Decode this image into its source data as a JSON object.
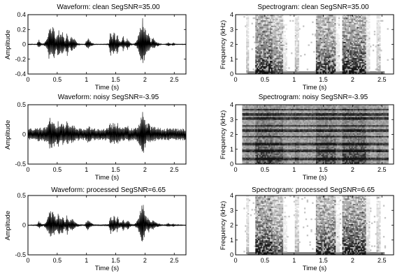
{
  "chart_data": [
    {
      "type": "line",
      "title": "Waveform: clean  SegSNR=35.00",
      "xlabel": "Time (s)",
      "ylabel": "Amplitude",
      "xlim": [
        0,
        2.7
      ],
      "ylim": [
        -0.4,
        0.4
      ],
      "xticks": [
        0,
        0.5,
        1,
        1.5,
        2,
        2.5
      ],
      "xtick_labels": [
        "0",
        "0.5",
        "1",
        "1.5",
        "2",
        "2.5"
      ],
      "yticks": [
        -0.4,
        -0.2,
        0,
        0.2,
        0.4
      ],
      "ytick_labels": [
        "-0.4",
        "-0.2",
        "0",
        "0.2",
        "0.4"
      ],
      "color": "#000000",
      "envelope": {
        "t": [
          0,
          0.15,
          0.19,
          0.23,
          0.27,
          0.33,
          0.37,
          0.4,
          0.44,
          0.48,
          0.52,
          0.56,
          0.6,
          0.63,
          0.67,
          0.7,
          0.74,
          0.79,
          0.84,
          0.88,
          0.92,
          0.97,
          1.02,
          1.07,
          1.13,
          1.2,
          1.3,
          1.38,
          1.41,
          1.44,
          1.47,
          1.5,
          1.53,
          1.56,
          1.6,
          1.63,
          1.66,
          1.7,
          1.75,
          1.8,
          1.85,
          1.88,
          1.92,
          1.96,
          1.99,
          2.03,
          2.06,
          2.1,
          2.14,
          2.18,
          2.22,
          2.26,
          2.3,
          2.35,
          2.4,
          2.45,
          2.48,
          2.52,
          2.58,
          2.7
        ],
        "upper": [
          0.005,
          0.005,
          0.07,
          0.01,
          0.01,
          0.09,
          0.3,
          0.22,
          0.27,
          0.08,
          0.21,
          0.14,
          0.17,
          0.04,
          0.21,
          0.05,
          0.11,
          0.09,
          0.02,
          0.01,
          0.005,
          0.005,
          0.1,
          0.04,
          0.005,
          0.005,
          0.005,
          0.01,
          0.19,
          0.09,
          0.2,
          0.08,
          0.16,
          0.05,
          0.04,
          0.13,
          0.04,
          0.1,
          0.02,
          0.005,
          0.04,
          0.1,
          0.25,
          0.38,
          0.26,
          0.12,
          0.16,
          0.05,
          0.1,
          0.04,
          0.03,
          0.01,
          0.005,
          0.005,
          0.03,
          0.005,
          0.03,
          0.005,
          0.005,
          0.005
        ],
        "lower": [
          -0.005,
          -0.005,
          -0.06,
          -0.01,
          -0.01,
          -0.08,
          -0.25,
          -0.18,
          -0.22,
          -0.07,
          -0.18,
          -0.12,
          -0.15,
          -0.04,
          -0.18,
          -0.04,
          -0.09,
          -0.08,
          -0.02,
          -0.01,
          -0.005,
          -0.005,
          -0.08,
          -0.03,
          -0.005,
          -0.005,
          -0.005,
          -0.01,
          -0.16,
          -0.08,
          -0.17,
          -0.07,
          -0.14,
          -0.04,
          -0.03,
          -0.11,
          -0.03,
          -0.08,
          -0.02,
          -0.005,
          -0.03,
          -0.08,
          -0.22,
          -0.35,
          -0.22,
          -0.1,
          -0.14,
          -0.04,
          -0.08,
          -0.03,
          -0.03,
          -0.01,
          -0.005,
          -0.005,
          -0.03,
          -0.005,
          -0.03,
          -0.005,
          -0.005,
          -0.005
        ]
      }
    },
    {
      "type": "heatmap",
      "title": "Spectrogram: clean  SegSNR=35.00",
      "xlabel": "Time (s)",
      "ylabel": "Frequency (kHz)",
      "xlim": [
        0,
        2.7
      ],
      "ylim": [
        0,
        4
      ],
      "xticks": [
        0,
        0.5,
        1,
        1.5,
        2,
        2.5
      ],
      "xtick_labels": [
        "0",
        "0.5",
        "1",
        "1.5",
        "2",
        "2.5"
      ],
      "yticks": [
        0,
        1,
        2,
        3,
        4
      ],
      "ytick_labels": [
        "0",
        "1",
        "2",
        "3",
        "4"
      ],
      "colormap": "gray-inverted",
      "active_segments": [
        [
          0.19,
          0.23,
          0.3
        ],
        [
          0.33,
          0.63,
          1.0
        ],
        [
          0.63,
          0.8,
          0.7
        ],
        [
          0.8,
          0.88,
          0.15
        ],
        [
          1.02,
          1.08,
          0.35
        ],
        [
          1.38,
          1.7,
          0.9
        ],
        [
          1.7,
          1.78,
          0.15
        ],
        [
          1.83,
          2.22,
          1.0
        ],
        [
          2.22,
          2.3,
          0.2
        ],
        [
          2.4,
          2.48,
          0.3
        ]
      ]
    },
    {
      "type": "line",
      "title": "Waveform: noisy  SegSNR=-3.95",
      "xlabel": "Time (s)",
      "ylabel": "Amplitude",
      "xlim": [
        0,
        2.7
      ],
      "ylim": [
        -0.5,
        0.5
      ],
      "xticks": [
        0,
        0.5,
        1,
        1.5,
        2,
        2.5
      ],
      "xtick_labels": [
        "0",
        "0.5",
        "1",
        "1.5",
        "2",
        "2.5"
      ],
      "yticks": [
        -0.5,
        0,
        0.5
      ],
      "ytick_labels": [
        "-0.5",
        "0",
        "0.5"
      ],
      "color": "#000000",
      "envelope": {
        "t": [
          0,
          0.15,
          0.19,
          0.23,
          0.27,
          0.33,
          0.37,
          0.4,
          0.44,
          0.48,
          0.52,
          0.56,
          0.6,
          0.63,
          0.67,
          0.7,
          0.74,
          0.79,
          0.84,
          0.88,
          0.92,
          0.97,
          1.02,
          1.07,
          1.13,
          1.2,
          1.3,
          1.38,
          1.41,
          1.44,
          1.47,
          1.5,
          1.53,
          1.56,
          1.6,
          1.63,
          1.66,
          1.7,
          1.75,
          1.8,
          1.85,
          1.88,
          1.92,
          1.96,
          1.99,
          2.03,
          2.06,
          2.1,
          2.14,
          2.18,
          2.22,
          2.26,
          2.3,
          2.35,
          2.4,
          2.45,
          2.48,
          2.52,
          2.58,
          2.7
        ],
        "upper": [
          0.1,
          0.11,
          0.15,
          0.12,
          0.12,
          0.16,
          0.32,
          0.25,
          0.3,
          0.15,
          0.24,
          0.18,
          0.21,
          0.12,
          0.24,
          0.13,
          0.16,
          0.15,
          0.11,
          0.11,
          0.1,
          0.1,
          0.15,
          0.12,
          0.1,
          0.1,
          0.1,
          0.11,
          0.22,
          0.15,
          0.23,
          0.14,
          0.2,
          0.12,
          0.12,
          0.18,
          0.12,
          0.15,
          0.11,
          0.1,
          0.12,
          0.16,
          0.28,
          0.44,
          0.3,
          0.17,
          0.2,
          0.13,
          0.15,
          0.12,
          0.12,
          0.11,
          0.1,
          0.1,
          0.12,
          0.1,
          0.12,
          0.1,
          0.1,
          0.1
        ],
        "lower": [
          -0.1,
          -0.11,
          -0.14,
          -0.12,
          -0.12,
          -0.15,
          -0.28,
          -0.22,
          -0.26,
          -0.14,
          -0.21,
          -0.16,
          -0.19,
          -0.12,
          -0.21,
          -0.12,
          -0.15,
          -0.14,
          -0.11,
          -0.11,
          -0.1,
          -0.1,
          -0.14,
          -0.12,
          -0.1,
          -0.1,
          -0.1,
          -0.11,
          -0.2,
          -0.14,
          -0.2,
          -0.13,
          -0.18,
          -0.12,
          -0.11,
          -0.16,
          -0.11,
          -0.14,
          -0.11,
          -0.1,
          -0.11,
          -0.14,
          -0.25,
          -0.38,
          -0.26,
          -0.15,
          -0.18,
          -0.12,
          -0.14,
          -0.11,
          -0.11,
          -0.11,
          -0.1,
          -0.1,
          -0.11,
          -0.1,
          -0.11,
          -0.1,
          -0.1,
          -0.1
        ]
      }
    },
    {
      "type": "heatmap",
      "title": "Spectrogram: noisy  SegSNR=-3.95",
      "xlabel": "Time (s)",
      "ylabel": "Frequency (kHz)",
      "xlim": [
        0,
        2.7
      ],
      "ylim": [
        0,
        4
      ],
      "xticks": [
        0,
        0.5,
        1,
        1.5,
        2,
        2.5
      ],
      "xtick_labels": [
        "0",
        "0.5",
        "1",
        "1.5",
        "2",
        "2.5"
      ],
      "yticks": [
        0,
        1,
        2,
        3,
        4
      ],
      "ytick_labels": [
        "0",
        "1",
        "2",
        "3",
        "4"
      ],
      "colormap": "gray-inverted",
      "tonal_noise_khz": [
        0.35,
        0.9,
        1.35,
        1.85,
        2.25,
        2.6,
        3.1,
        3.35,
        3.7
      ]
    },
    {
      "type": "line",
      "title": "Waveform: processed  SegSNR=6.65",
      "xlabel": "Time (s)",
      "ylabel": "Amplitude",
      "xlim": [
        0,
        2.7
      ],
      "ylim": [
        -0.5,
        0.5
      ],
      "xticks": [
        0,
        0.5,
        1,
        1.5,
        2,
        2.5
      ],
      "xtick_labels": [
        "0",
        "0.5",
        "1",
        "1.5",
        "2",
        "2.5"
      ],
      "yticks": [
        -0.5,
        0,
        0.5
      ],
      "ytick_labels": [
        "-0.5",
        "0",
        "0.5"
      ],
      "color": "#000000",
      "envelope": {
        "t": [
          0,
          0.15,
          0.19,
          0.23,
          0.27,
          0.33,
          0.37,
          0.4,
          0.44,
          0.48,
          0.52,
          0.56,
          0.6,
          0.63,
          0.67,
          0.7,
          0.74,
          0.79,
          0.84,
          0.88,
          0.92,
          0.97,
          1.02,
          1.07,
          1.13,
          1.2,
          1.3,
          1.38,
          1.41,
          1.44,
          1.47,
          1.5,
          1.53,
          1.56,
          1.6,
          1.63,
          1.66,
          1.7,
          1.75,
          1.8,
          1.85,
          1.88,
          1.92,
          1.96,
          1.99,
          2.03,
          2.06,
          2.1,
          2.14,
          2.18,
          2.22,
          2.26,
          2.3,
          2.35,
          2.4,
          2.45,
          2.48,
          2.52,
          2.58,
          2.7
        ],
        "upper": [
          0.005,
          0.01,
          0.08,
          0.02,
          0.02,
          0.1,
          0.3,
          0.22,
          0.27,
          0.09,
          0.21,
          0.14,
          0.17,
          0.05,
          0.21,
          0.06,
          0.11,
          0.09,
          0.03,
          0.02,
          0.01,
          0.01,
          0.1,
          0.05,
          0.01,
          0.01,
          0.01,
          0.02,
          0.19,
          0.09,
          0.2,
          0.08,
          0.16,
          0.06,
          0.05,
          0.13,
          0.05,
          0.1,
          0.03,
          0.01,
          0.05,
          0.1,
          0.25,
          0.42,
          0.26,
          0.12,
          0.16,
          0.06,
          0.1,
          0.05,
          0.04,
          0.02,
          0.01,
          0.01,
          0.04,
          0.01,
          0.04,
          0.01,
          0.01,
          0.005
        ],
        "lower": [
          -0.005,
          -0.01,
          -0.07,
          -0.02,
          -0.02,
          -0.09,
          -0.25,
          -0.19,
          -0.22,
          -0.08,
          -0.18,
          -0.12,
          -0.15,
          -0.04,
          -0.18,
          -0.05,
          -0.09,
          -0.08,
          -0.03,
          -0.02,
          -0.01,
          -0.01,
          -0.09,
          -0.04,
          -0.01,
          -0.01,
          -0.01,
          -0.02,
          -0.16,
          -0.08,
          -0.17,
          -0.07,
          -0.14,
          -0.05,
          -0.04,
          -0.11,
          -0.04,
          -0.08,
          -0.03,
          -0.01,
          -0.04,
          -0.09,
          -0.22,
          -0.36,
          -0.22,
          -0.1,
          -0.14,
          -0.05,
          -0.09,
          -0.04,
          -0.04,
          -0.02,
          -0.01,
          -0.01,
          -0.04,
          -0.01,
          -0.04,
          -0.01,
          -0.01,
          -0.005
        ]
      }
    },
    {
      "type": "heatmap",
      "title": "Spectrogram: processed  SegSNR=6.65",
      "xlabel": "Time (s)",
      "ylabel": "Frequency (kHz)",
      "xlim": [
        0,
        2.7
      ],
      "ylim": [
        0,
        4
      ],
      "xticks": [
        0,
        0.5,
        1,
        1.5,
        2,
        2.5
      ],
      "xtick_labels": [
        "0",
        "0.5",
        "1",
        "1.5",
        "2",
        "2.5"
      ],
      "yticks": [
        0,
        1,
        2,
        3,
        4
      ],
      "ytick_labels": [
        "0",
        "1",
        "2",
        "3",
        "4"
      ],
      "colormap": "gray-inverted",
      "active_segments": [
        [
          0.19,
          0.23,
          0.3
        ],
        [
          0.33,
          0.63,
          1.0
        ],
        [
          0.63,
          0.8,
          0.7
        ],
        [
          0.8,
          0.88,
          0.15
        ],
        [
          1.02,
          1.08,
          0.35
        ],
        [
          1.38,
          1.7,
          0.9
        ],
        [
          1.7,
          1.78,
          0.15
        ],
        [
          1.83,
          2.22,
          1.0
        ],
        [
          2.22,
          2.3,
          0.2
        ],
        [
          2.4,
          2.48,
          0.3
        ]
      ]
    }
  ]
}
